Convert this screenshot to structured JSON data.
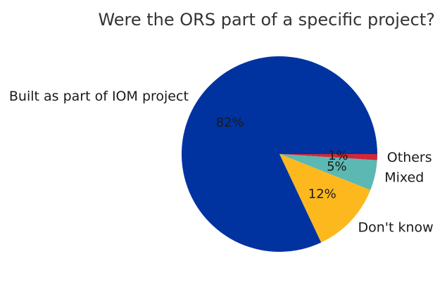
{
  "chart_data": {
    "type": "pie",
    "title": "Were the ORS part of a specific project?",
    "categories": [
      "Others",
      "Mixed",
      "Don't know",
      "Built as part of IOM project"
    ],
    "values": [
      1,
      5,
      12,
      82
    ],
    "value_labels": [
      "1%",
      "5%",
      "12%",
      "82%"
    ],
    "colors": [
      "#D0283A",
      "#5CB8B2",
      "#FDB81E",
      "#0033A0"
    ],
    "start_angle_deg": 0,
    "direction": "clockwise",
    "legend": "none"
  }
}
